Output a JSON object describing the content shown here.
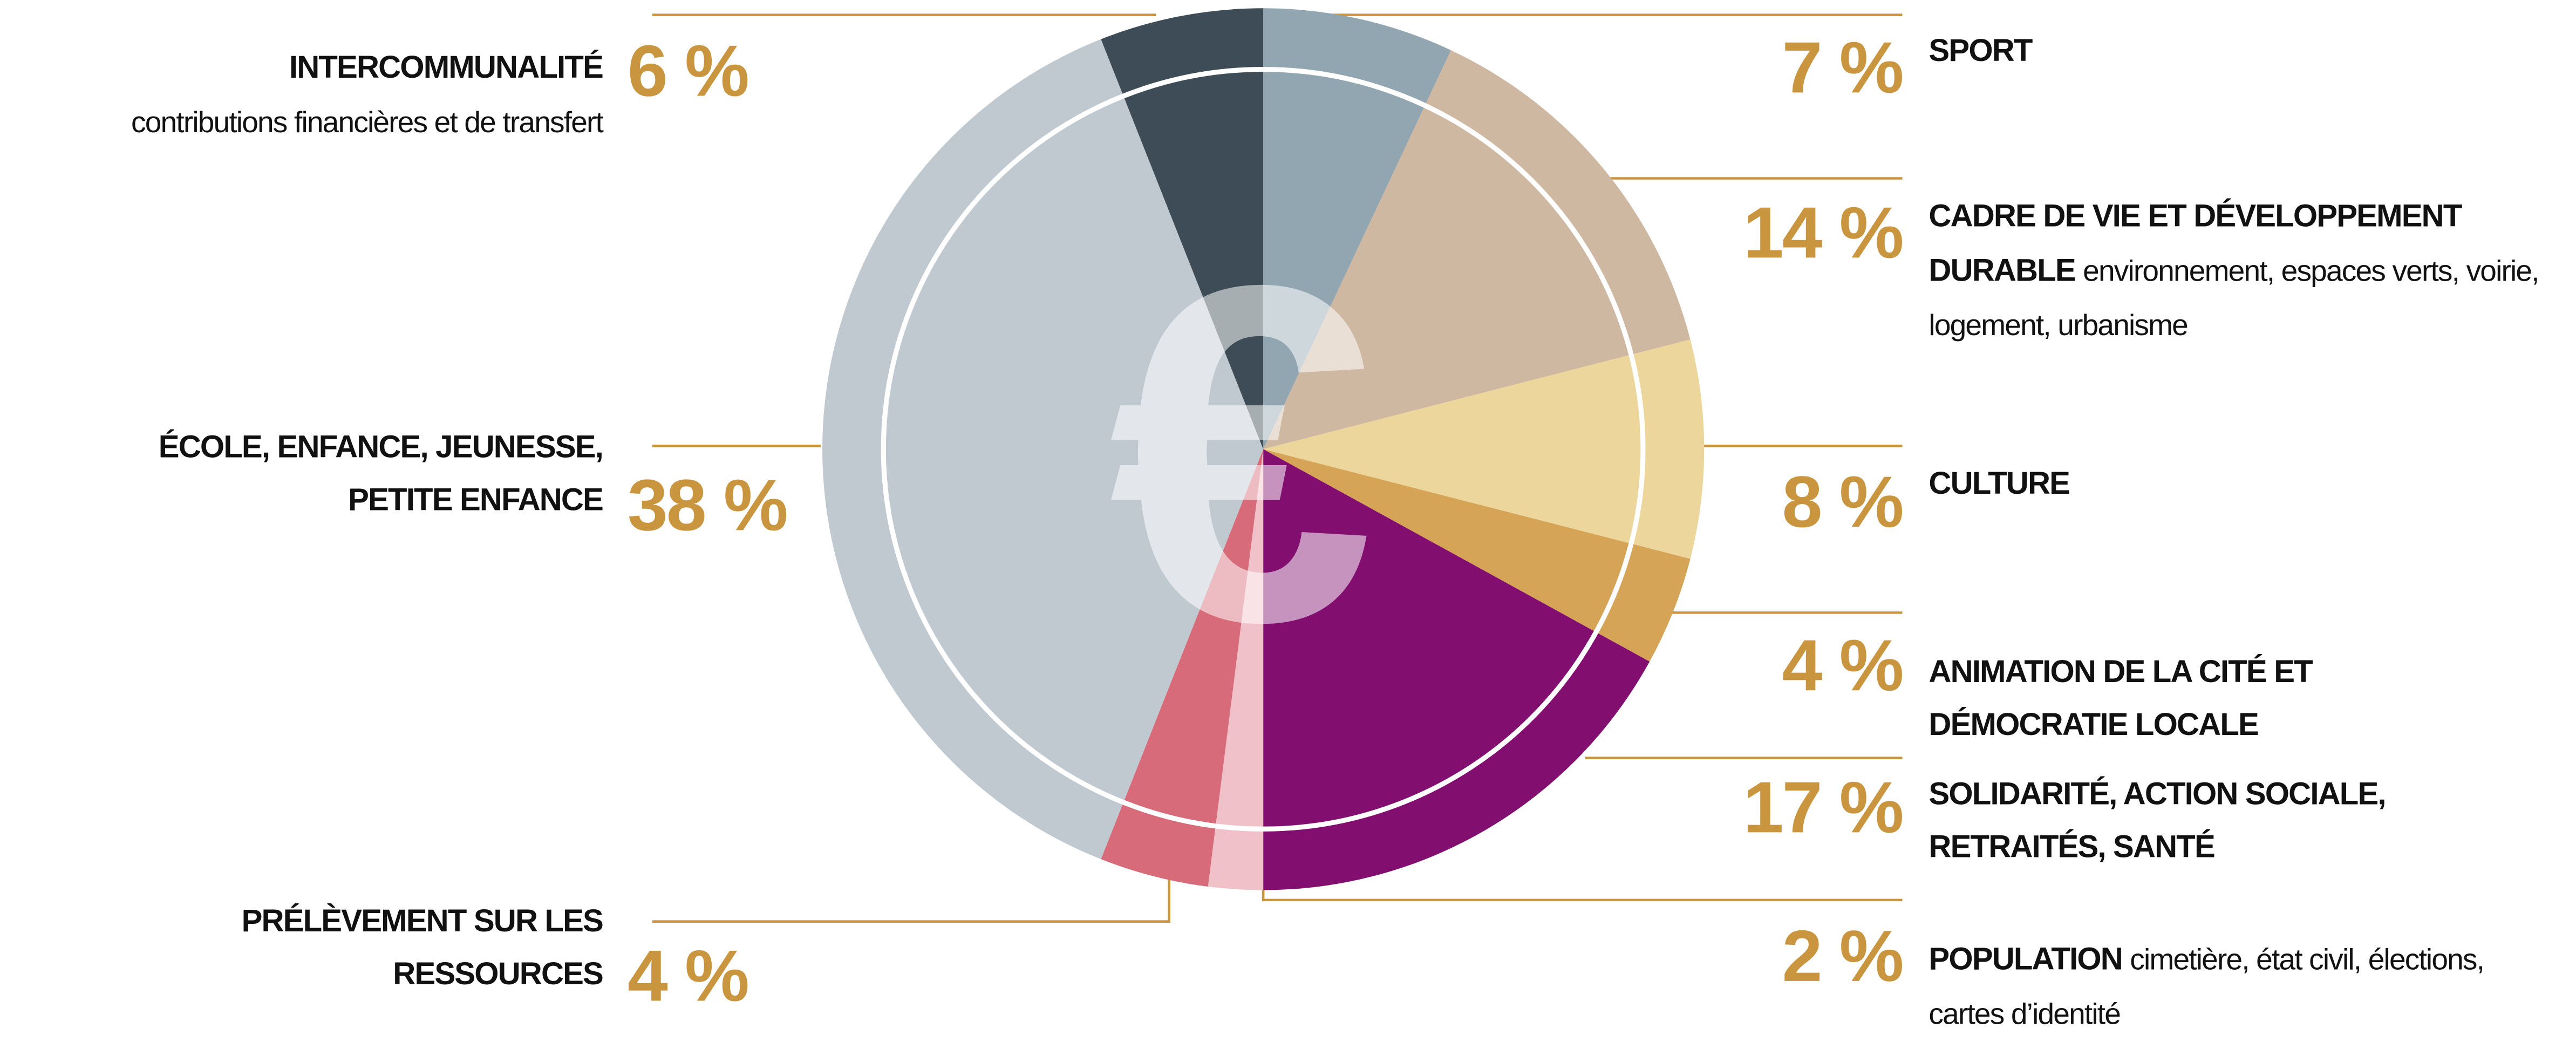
{
  "chart_data": {
    "type": "pie",
    "center_symbol": "€",
    "categories": [
      "SPORT",
      "CADRE DE VIE ET DÉVELOPPEMENT DURABLE",
      "CULTURE",
      "ANIMATION DE LA CITÉ ET DÉMOCRATIE LOCALE",
      "SOLIDARITÉ, ACTION SOCIALE, RETRAITÉS, SANTÉ",
      "POPULATION",
      "PRÉLÈVEMENT SUR LES RESSOURCES",
      "ÉCOLE, ENFANCE, JEUNESSE, PETITE ENFANCE",
      "INTERCOMMUNALITÉ"
    ],
    "descriptions": [
      null,
      "environnement, espaces verts, voirie, logement, urbanisme",
      null,
      null,
      null,
      "cimetière, état civil, élections, cartes d’identité",
      null,
      null,
      "contributions financières et de transfert"
    ],
    "values": [
      7,
      14,
      8,
      4,
      17,
      2,
      4,
      38,
      6
    ],
    "value_labels": [
      "7 %",
      "14 %",
      "8 %",
      "4 %",
      "17 %",
      "2 %",
      "4 %",
      "38 %",
      "6 %"
    ],
    "colors": [
      "#91a6b1",
      "#cfb8a2",
      "#edd69c",
      "#d6a456",
      "#820e6f",
      "#f1c1c9",
      "#d86b79",
      "#c0c8d0",
      "#3d4c56"
    ]
  }
}
